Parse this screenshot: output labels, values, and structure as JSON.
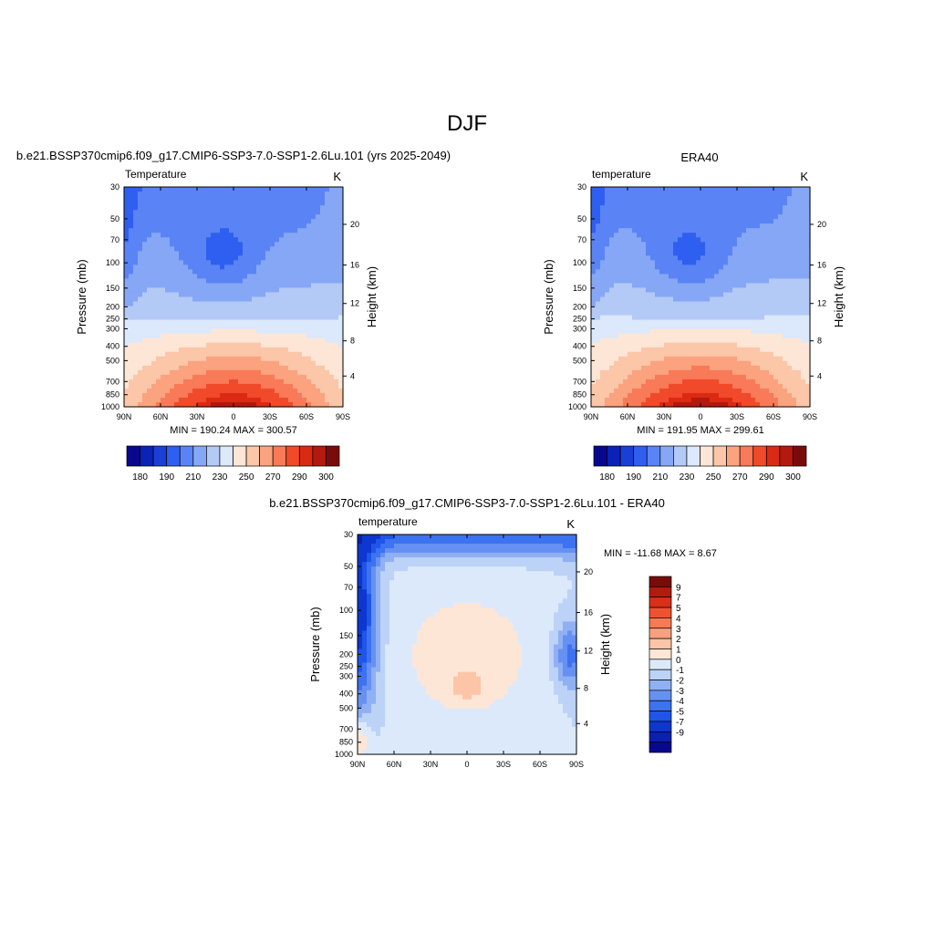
{
  "figure": {
    "title": "DJF",
    "panel_top_left_title": "b.e21.BSSP370cmip6.f09_g17.CMIP6-SSP3-7.0-SSP1-2.6Lu.101 (yrs 2025-2049)",
    "panel_top_right_title": "ERA40",
    "panel_bottom_title": "b.e21.BSSP370cmip6.f09_g17.CMIP6-SSP3-7.0-SSP1-2.6Lu.101 - ERA40"
  },
  "colors": {
    "temp_palette": [
      "#08088f",
      "#0a22b8",
      "#1a3fd6",
      "#2f5ff0",
      "#5a84f5",
      "#86a7f5",
      "#b3c9f6",
      "#dce8fb",
      "#fde6d6",
      "#fcc6a8",
      "#fba27f",
      "#f87a58",
      "#f04a2a",
      "#db2a14",
      "#b3190e",
      "#7a0b0b"
    ],
    "diff_palette": [
      "#08088f",
      "#0b1fb0",
      "#0d37cf",
      "#1f55e8",
      "#3d72f0",
      "#6691f2",
      "#90b0f4",
      "#bcd2f7",
      "#dce9fb",
      "#fde6d6",
      "#fcc5a8",
      "#f9a07e",
      "#f67a56",
      "#ee5230",
      "#d8301a",
      "#b01c0f",
      "#7a0b0b"
    ]
  },
  "chart_data": [
    {
      "type": "heatmap",
      "title": "b.e21.BSSP370cmip6.f09_g17.CMIP6-SSP3-7.0-SSP1-2.6Lu.101 (yrs 2025-2049)",
      "left_label": "Temperature",
      "units": "K",
      "xlabel": "",
      "ylabel": "Pressure (mb)",
      "right_ylabel": "Height (km)",
      "x_ticks": [
        "90N",
        "60N",
        "30N",
        "0",
        "30S",
        "60S",
        "90S"
      ],
      "y_ticks": [
        "30",
        "50",
        "70",
        "100",
        "150",
        "200",
        "250",
        "300",
        "400",
        "500",
        "700",
        "850",
        "1000"
      ],
      "height_ticks": [
        "20",
        "16",
        "12",
        "8",
        "4"
      ],
      "min": 190.24,
      "max": 300.57,
      "stats": "MIN = 190.24  MAX = 300.57",
      "colorbar_labels": [
        "180",
        "190",
        "210",
        "230",
        "250",
        "270",
        "290",
        "300"
      ],
      "levels": [
        180,
        185,
        190,
        200,
        210,
        220,
        230,
        240,
        250,
        260,
        270,
        280,
        290,
        295,
        300
      ]
    },
    {
      "type": "heatmap",
      "title": "ERA40",
      "left_label": "temperature",
      "units": "K",
      "xlabel": "",
      "ylabel": "Pressure (mb)",
      "right_ylabel": "Height (km)",
      "x_ticks": [
        "90N",
        "60N",
        "30N",
        "0",
        "30S",
        "60S",
        "90S"
      ],
      "y_ticks": [
        "30",
        "50",
        "70",
        "100",
        "150",
        "200",
        "250",
        "300",
        "400",
        "500",
        "700",
        "850",
        "1000"
      ],
      "height_ticks": [
        "20",
        "16",
        "12",
        "8",
        "4"
      ],
      "min": 191.95,
      "max": 299.61,
      "stats": "MIN = 191.95  MAX = 299.61",
      "colorbar_labels": [
        "180",
        "190",
        "210",
        "230",
        "250",
        "270",
        "290",
        "300"
      ],
      "levels": [
        180,
        185,
        190,
        200,
        210,
        220,
        230,
        240,
        250,
        260,
        270,
        280,
        290,
        295,
        300
      ]
    },
    {
      "type": "heatmap",
      "title": "b.e21.BSSP370cmip6.f09_g17.CMIP6-SSP3-7.0-SSP1-2.6Lu.101 - ERA40",
      "left_label": "temperature",
      "units": "K",
      "xlabel": "",
      "ylabel": "Pressure (mb)",
      "right_ylabel": "Height (km)",
      "x_ticks": [
        "90N",
        "60N",
        "30N",
        "0",
        "30S",
        "60S",
        "90S"
      ],
      "y_ticks": [
        "30",
        "50",
        "70",
        "100",
        "150",
        "200",
        "250",
        "300",
        "400",
        "500",
        "700",
        "850",
        "1000"
      ],
      "height_ticks": [
        "20",
        "16",
        "12",
        "8",
        "4"
      ],
      "min": -11.68,
      "max": 8.67,
      "stats": "MIN = -11.68  MAX =   8.67",
      "colorbar_labels": [
        "9",
        "7",
        "5",
        "4",
        "3",
        "2",
        "1",
        "0",
        "-1",
        "-2",
        "-3",
        "-4",
        "-5",
        "-7",
        "-9"
      ],
      "levels": [
        -9,
        -7,
        -5,
        -4,
        -3,
        -2,
        -1,
        0,
        1,
        2,
        3,
        4,
        5,
        7,
        9
      ]
    }
  ]
}
